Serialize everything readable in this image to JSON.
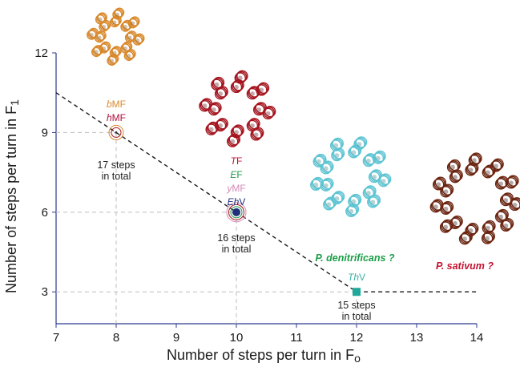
{
  "chart_data": {
    "type": "scatter",
    "xlabel": "Number of steps per turn in F",
    "xlabel_sub": "o",
    "ylabel": "Number of steps per turn in F",
    "ylabel_sub": "1",
    "xlim": [
      7,
      14
    ],
    "ylim": [
      1.8,
      12
    ],
    "x_ticks": [
      "7",
      "8",
      "9",
      "10",
      "11",
      "12",
      "13",
      "14"
    ],
    "y_ticks": [
      "3",
      "6",
      "9",
      "12"
    ],
    "grid": false,
    "trend_line": {
      "x": [
        7,
        12.0,
        14
      ],
      "y": [
        10.5,
        3.0,
        3.0
      ]
    },
    "points": [
      {
        "x": 8,
        "y": 9,
        "marker": "open-circle",
        "species": [
          {
            "text": "b",
            "rest": "MF",
            "color": "#d9892b"
          },
          {
            "text": "h",
            "rest": "MF",
            "color": "#b0103a"
          }
        ],
        "note": [
          "17 steps",
          "in total"
        ]
      },
      {
        "x": 10,
        "y": 6,
        "marker": "filled-circle-rings",
        "species": [
          {
            "text": "T",
            "rest": "F",
            "color": "#c4122f"
          },
          {
            "text": "E",
            "rest": "F",
            "color": "#1e9a4a"
          },
          {
            "text": "y",
            "rest": "MF",
            "color": "#d48ab8"
          },
          {
            "text": "Eh",
            "rest": "V",
            "color": "#1f2f7a"
          }
        ],
        "note": [
          "16 steps",
          "in total"
        ]
      },
      {
        "x": 12,
        "y": 3,
        "marker": "square",
        "species": [
          {
            "text": "Th",
            "rest": "V",
            "color": "#3bb3a6"
          }
        ],
        "note": [
          "15 steps",
          "in total"
        ]
      }
    ],
    "queries": [
      {
        "label": "P. denitrificans ?",
        "color": "#1a9e46"
      },
      {
        "label": "P. sativum ?",
        "color": "#c4122f"
      }
    ]
  },
  "colors": {
    "orange_ring": "#d9892b",
    "red_ring": "#a5141e",
    "cyan_ring": "#5cc4d2",
    "brown_ring": "#6b2410",
    "accent_blue": "#1f2f7a",
    "square": "#1fa99a"
  },
  "images": {
    "ring_bovine": "orange-c-ring-structure",
    "ring_thermus": "red-c-ring-structure",
    "ring_denitrificans": "cyan-c-ring-structure",
    "ring_sativum": "brown-c-ring-structure"
  }
}
